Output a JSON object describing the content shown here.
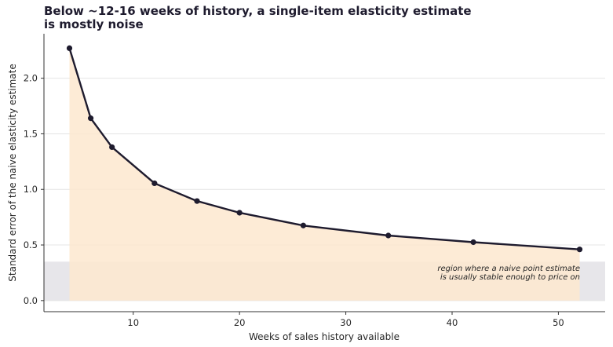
{
  "chart_data": {
    "type": "line",
    "title_lines": [
      "Below ~12-16 weeks of history, a single-item elasticity estimate",
      "is mostly noise"
    ],
    "xlabel": "Weeks of sales history available",
    "ylabel": "Standard error of the naive elasticity estimate",
    "x": [
      4,
      6,
      8,
      12,
      16,
      20,
      26,
      34,
      42,
      52
    ],
    "series": [
      {
        "values": [
          2.27,
          1.64,
          1.38,
          1.055,
          0.895,
          0.79,
          0.675,
          0.585,
          0.525,
          0.46
        ]
      }
    ],
    "xlim": [
      1.6,
      54.4
    ],
    "ylim": [
      -0.1,
      2.4
    ],
    "xticks": [
      10,
      20,
      30,
      40,
      50
    ],
    "yticks": [
      0.0,
      0.5,
      1.0,
      1.5,
      2.0
    ],
    "ytick_labels": [
      "0.0",
      "0.5",
      "1.0",
      "1.5",
      "2.0"
    ],
    "grid": "horizontal",
    "stable_band": {
      "y_from": 0,
      "y_to": 0.35
    },
    "annotation_lines": [
      "region where a naive point estimate",
      "is usually stable enough to price on"
    ],
    "colors": {
      "line": "#1e1b2e",
      "fill": "#fde8cf",
      "band": "#e7e6ea",
      "grid": "#e4e4e4",
      "title": "#1e1b2e"
    }
  }
}
